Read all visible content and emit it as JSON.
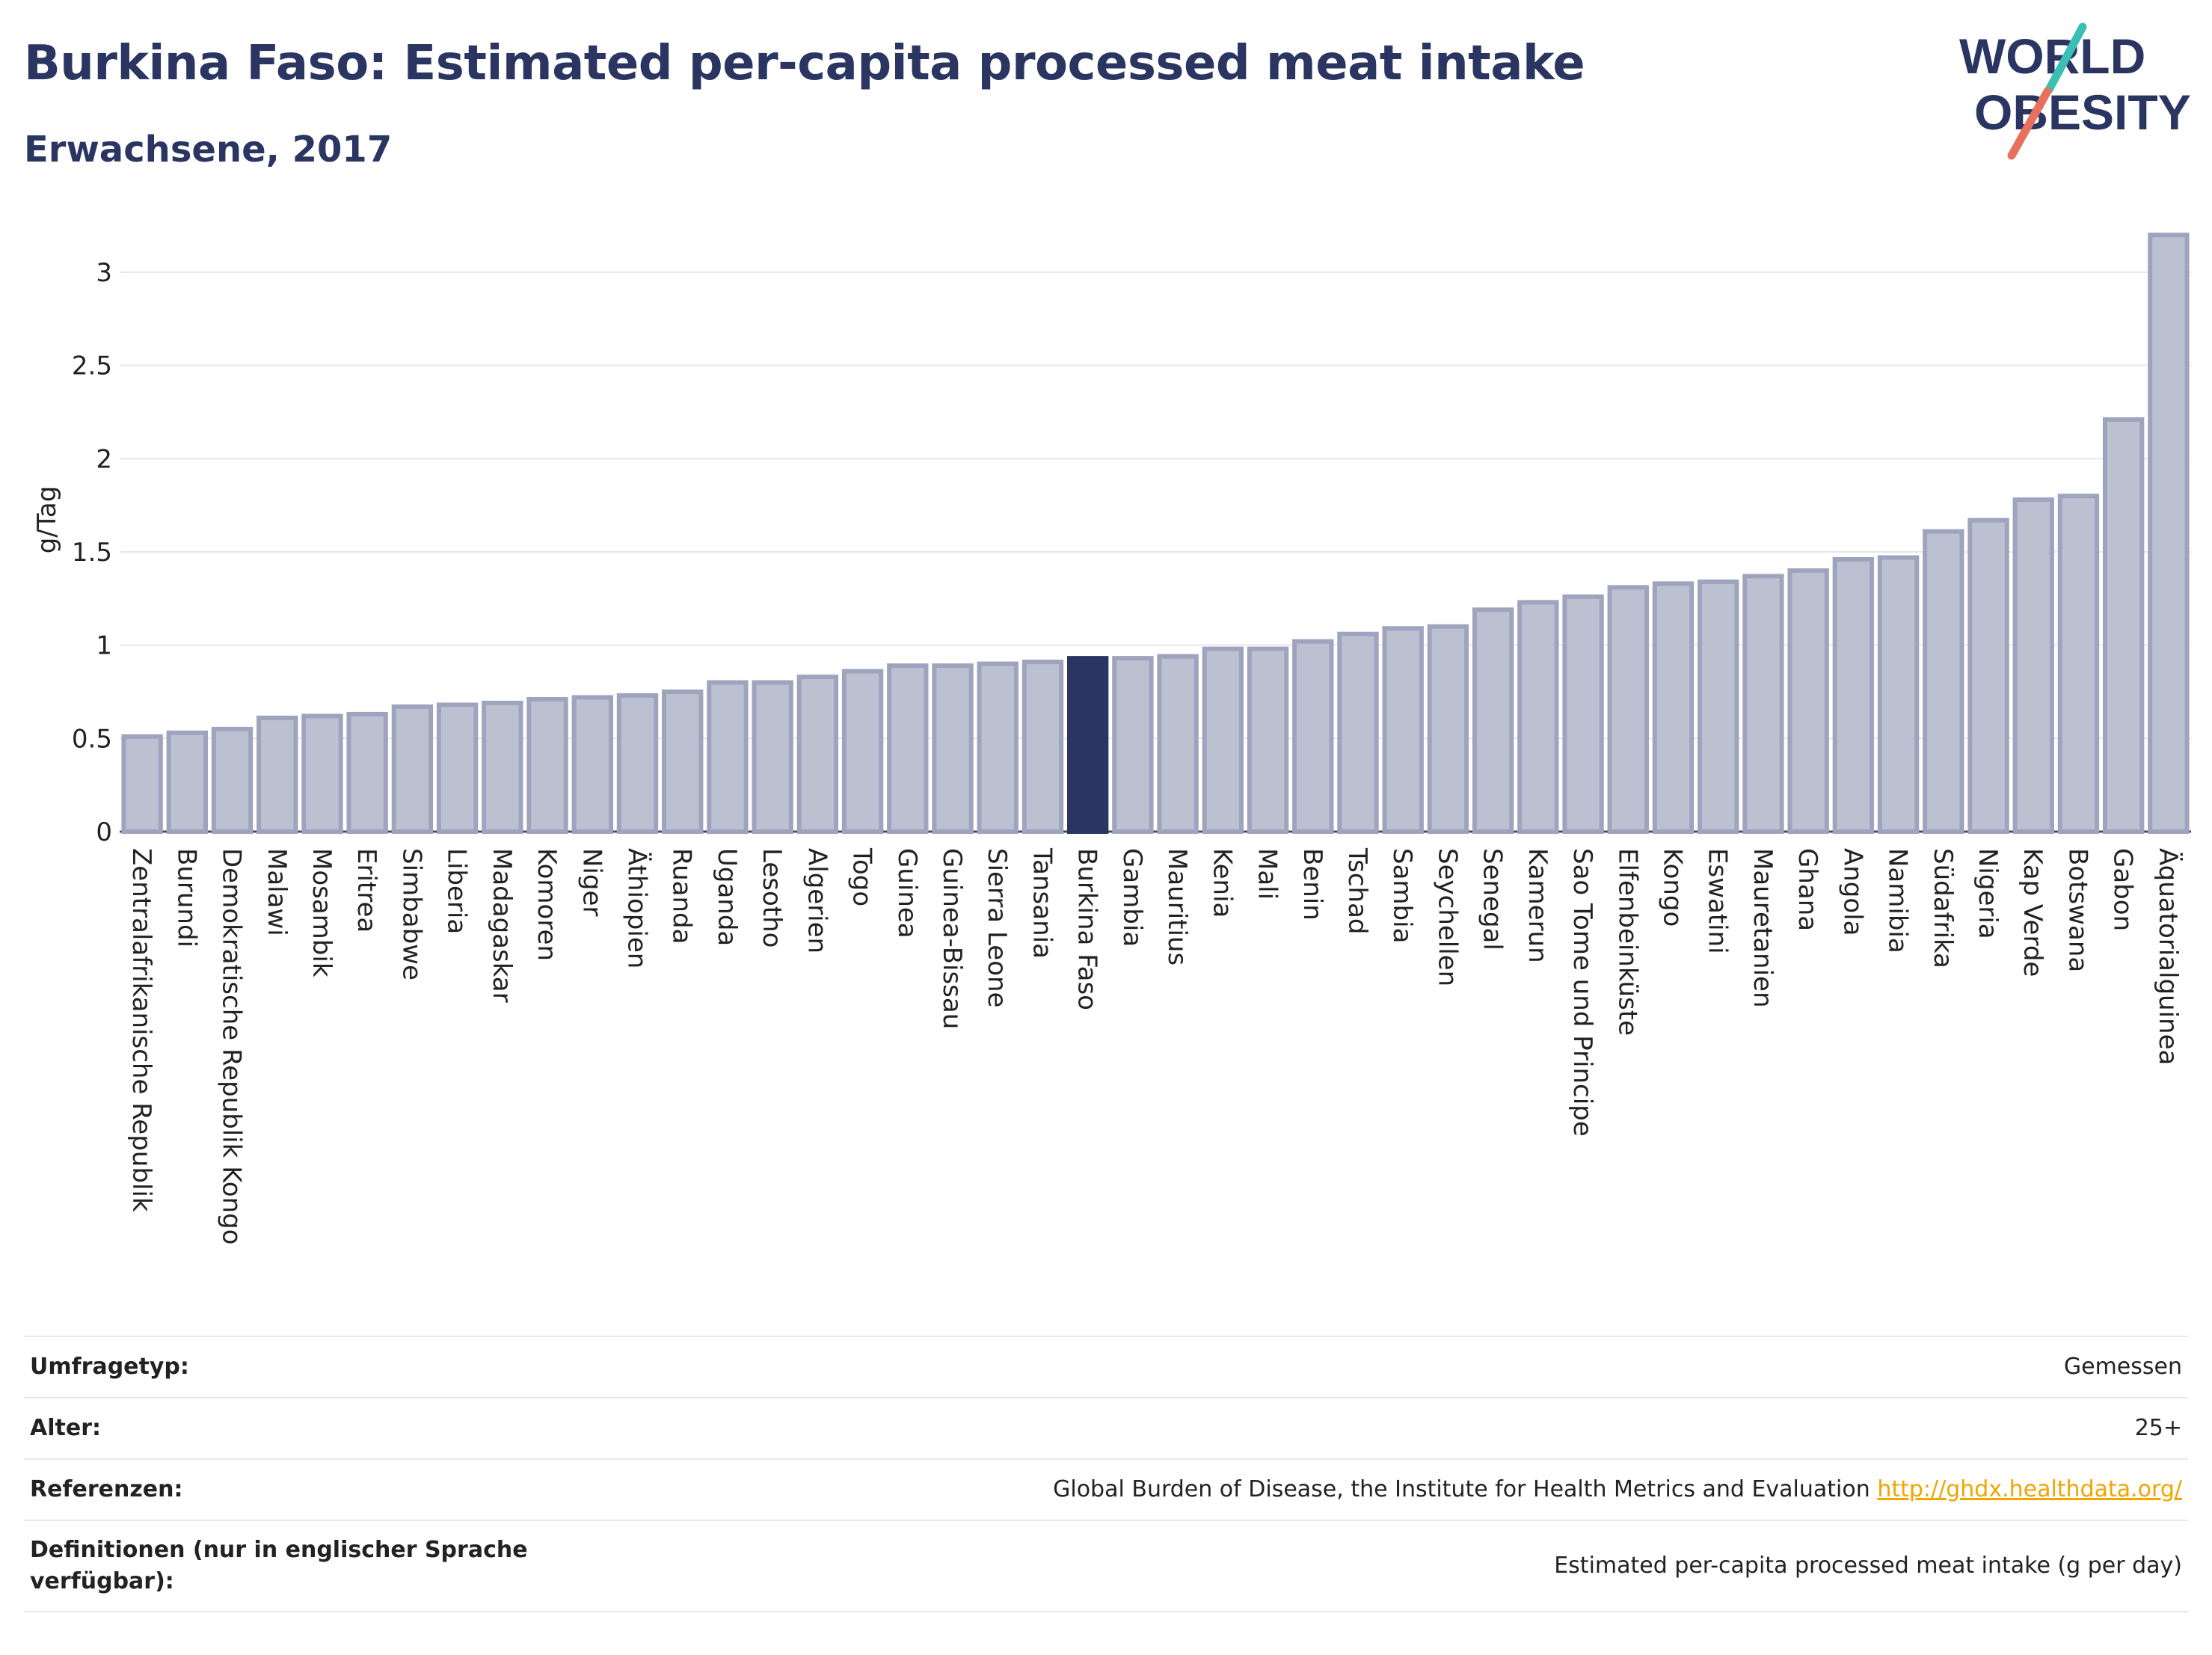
{
  "header": {
    "title": "Burkina Faso: Estimated per-capita processed meat intake",
    "subtitle": "Erwachsene, 2017"
  },
  "logo": {
    "text_line1": "WORLD",
    "text_line2": "OBESITY",
    "colors": {
      "text": "#2a3561",
      "slash_top": "#3bbfb5",
      "slash_bottom": "#e8705f"
    }
  },
  "colors": {
    "bar": "#bcc1d1",
    "bar_border": "#9ea4bd",
    "highlight": "#2a3561",
    "grid": "#e5e7ee",
    "axis_text": "#222222"
  },
  "chart_data": {
    "type": "bar",
    "ylabel": "g/Tag",
    "xlabel": "",
    "ylim": [
      0,
      3.25
    ],
    "yticks": [
      0,
      0.5,
      1,
      1.5,
      2,
      2.5,
      3
    ],
    "ytick_labels": [
      "0",
      "0.5",
      "1",
      "1.5",
      "2",
      "2.5",
      "3"
    ],
    "grid": true,
    "highlight_category": "Burkina Faso",
    "categories": [
      "Zentralafrikanische Republik",
      "Burundi",
      "Demokratische Republik Kongo",
      "Malawi",
      "Mosambik",
      "Eritrea",
      "Simbabwe",
      "Liberia",
      "Madagaskar",
      "Komoren",
      "Niger",
      "Äthiopien",
      "Ruanda",
      "Uganda",
      "Lesotho",
      "Algerien",
      "Togo",
      "Guinea",
      "Guinea-Bissau",
      "Sierra Leone",
      "Tansania",
      "Burkina Faso",
      "Gambia",
      "Mauritius",
      "Kenia",
      "Mali",
      "Benin",
      "Tschad",
      "Sambia",
      "Seychellen",
      "Senegal",
      "Kamerun",
      "Sao Tome und Principe",
      "Elfenbeinküste",
      "Kongo",
      "Eswatini",
      "Mauretanien",
      "Ghana",
      "Angola",
      "Namibia",
      "Südafrika",
      "Nigeria",
      "Kap Verde",
      "Botswana",
      "Gabon",
      "Äquatorialguinea"
    ],
    "values": [
      0.51,
      0.53,
      0.55,
      0.61,
      0.62,
      0.63,
      0.67,
      0.68,
      0.69,
      0.71,
      0.72,
      0.73,
      0.75,
      0.8,
      0.8,
      0.83,
      0.86,
      0.89,
      0.89,
      0.9,
      0.91,
      0.93,
      0.93,
      0.94,
      0.98,
      0.98,
      1.02,
      1.06,
      1.09,
      1.1,
      1.19,
      1.23,
      1.26,
      1.31,
      1.33,
      1.34,
      1.37,
      1.4,
      1.46,
      1.47,
      1.61,
      1.67,
      1.78,
      1.8,
      2.21,
      3.2
    ]
  },
  "meta": {
    "rows": [
      {
        "label": "Umfragetyp:",
        "value": "Gemessen"
      },
      {
        "label": "Alter:",
        "value": "25+"
      },
      {
        "label": "Referenzen:",
        "value": "Global Burden of Disease, the Institute for Health Metrics and Evaluation",
        "link": "http://ghdx.healthdata.org/"
      },
      {
        "label": "Definitionen (nur in englischer Sprache verfügbar):",
        "value": "Estimated per-capita processed meat intake (g per day)"
      }
    ]
  }
}
